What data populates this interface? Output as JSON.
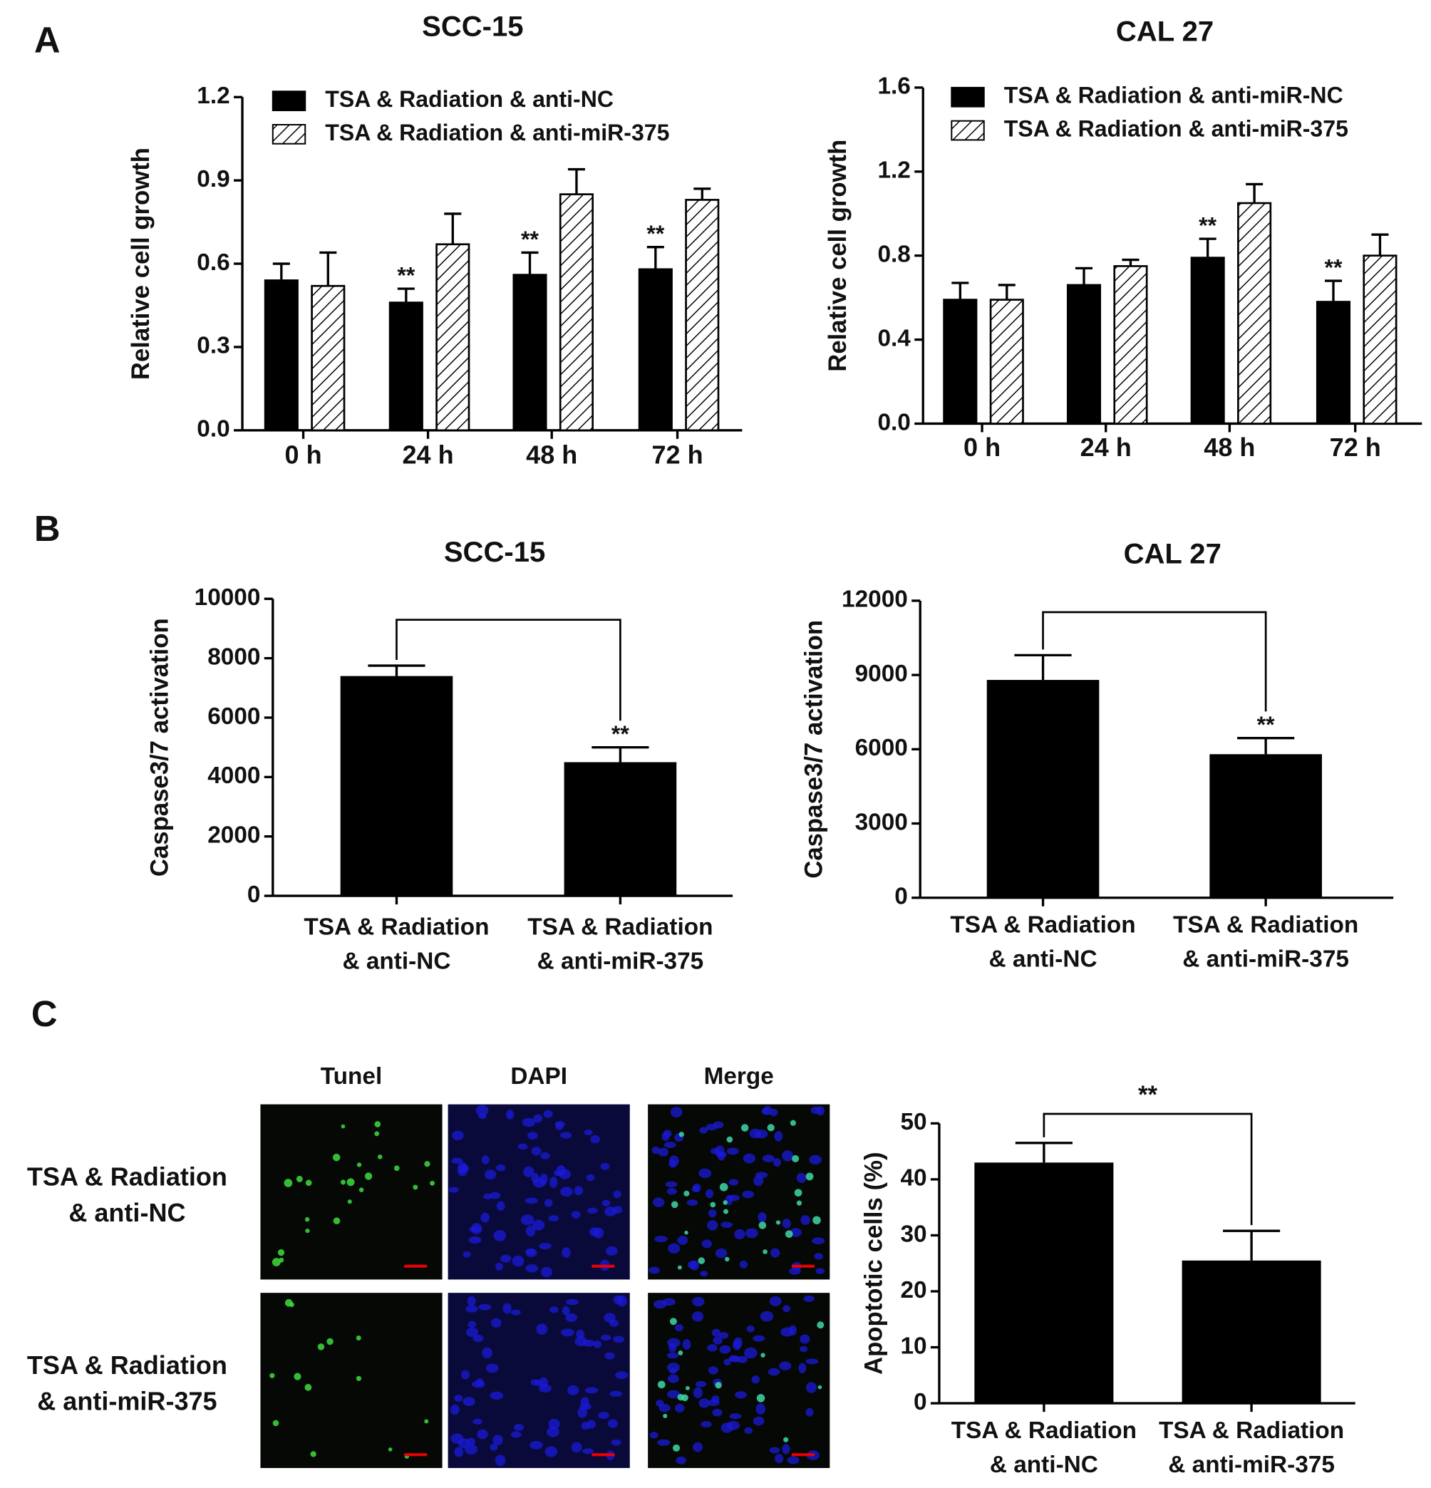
{
  "panels": [
    "A",
    "B",
    "C"
  ],
  "images": {
    "columns": [
      "Tunel",
      "DAPI",
      "Merge"
    ],
    "rows": [
      [
        "TSA & Radiation",
        "& anti-NC"
      ],
      [
        "TSA & Radiation",
        "& anti-miR-375"
      ]
    ]
  },
  "chart_data": [
    {
      "type": "bar",
      "title": "SCC-15",
      "y_label": "Relative cell growth",
      "categories": [
        "0 h",
        "24 h",
        "48 h",
        "72 h"
      ],
      "series": [
        {
          "name": "TSA & Radiation & anti-NC",
          "color": "#000000",
          "values": [
            0.54,
            0.46,
            0.56,
            0.58
          ],
          "errors": [
            0.06,
            0.05,
            0.08,
            0.08
          ],
          "annotations": [
            null,
            "**",
            "**",
            "**"
          ]
        },
        {
          "name": "TSA & Radiation & anti-miR-375",
          "color": "#ffffff",
          "hatch": true,
          "values": [
            0.52,
            0.67,
            0.85,
            0.83
          ],
          "errors": [
            0.12,
            0.11,
            0.09,
            0.04
          ]
        }
      ],
      "ylim": [
        0,
        1.2
      ],
      "yticks": [
        {
          "value": 0,
          "label": "0.0"
        },
        0.3,
        0.6,
        0.9,
        1.2
      ]
    },
    {
      "type": "bar",
      "title": "CAL 27",
      "y_label": "Relative cell growth",
      "categories": [
        "0 h",
        "24 h",
        "48 h",
        "72 h"
      ],
      "series": [
        {
          "name": "TSA & Radiation & anti-miR-NC",
          "color": "#000000",
          "values": [
            0.59,
            0.66,
            0.79,
            0.58
          ],
          "errors": [
            0.08,
            0.08,
            0.09,
            0.1
          ],
          "annotations": [
            null,
            null,
            "**",
            "**"
          ]
        },
        {
          "name": "TSA & Radiation & anti-miR-375",
          "color": "#ffffff",
          "hatch": true,
          "values": [
            0.59,
            0.75,
            1.05,
            0.8
          ],
          "errors": [
            0.07,
            0.03,
            0.09,
            0.1
          ]
        }
      ],
      "ylim": [
        0,
        1.6
      ],
      "yticks": [
        {
          "value": 0,
          "label": "0.0"
        },
        0.4,
        0.8,
        1.2,
        1.6
      ]
    },
    {
      "type": "bar",
      "title": "SCC-15",
      "y_label": "Caspase3/7 activation",
      "categories": [
        [
          "TSA & Radiation",
          "& anti-NC"
        ],
        [
          "TSA & Radiation",
          "& anti-miR-375"
        ]
      ],
      "values": [
        7400,
        4500
      ],
      "errors": [
        350,
        500
      ],
      "annotations": [
        null,
        "**"
      ],
      "color": "#000000",
      "bracket": true,
      "ylim": [
        0,
        10000
      ],
      "yticks": [
        0,
        2000,
        4000,
        6000,
        8000,
        10000
      ]
    },
    {
      "type": "bar",
      "title": "CAL 27",
      "y_label": "Caspase3/7 activation",
      "categories": [
        [
          "TSA & Radiation",
          "& anti-NC"
        ],
        [
          "TSA & Radiation",
          "& anti-miR-375"
        ]
      ],
      "values": [
        8800,
        5800
      ],
      "errors": [
        1000,
        650
      ],
      "annotations": [
        null,
        "**"
      ],
      "color": "#000000",
      "bracket": true,
      "ylim": [
        0,
        12000
      ],
      "yticks": [
        0,
        3000,
        6000,
        9000,
        12000
      ]
    },
    {
      "type": "bar",
      "y_label": "Apoptotic cells (%)",
      "categories": [
        [
          "TSA & Radiation",
          "& anti-NC"
        ],
        [
          "TSA & Radiation",
          "& anti-miR-375"
        ]
      ],
      "values": [
        43,
        25.5
      ],
      "errors": [
        3.5,
        5.3
      ],
      "color": "#000000",
      "bracket": true,
      "bracket_label": "**",
      "ylim": [
        0,
        50
      ],
      "yticks": [
        0,
        10,
        20,
        30,
        40,
        50
      ]
    }
  ]
}
